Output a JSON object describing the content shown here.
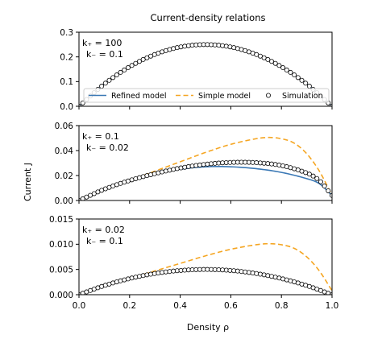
{
  "figure": {
    "title": "Current-density relations",
    "xlabel": "Density ρ",
    "ylabel": "Current J"
  },
  "legend": {
    "entries": [
      {
        "label": "Refined model",
        "style": "solid-line",
        "color": "#3a78b5"
      },
      {
        "label": "Simple model",
        "style": "dashed-line",
        "color": "#f5a623"
      },
      {
        "label": "Simulation",
        "style": "open-circle",
        "color": "#000000"
      }
    ],
    "panel": 0,
    "placement": "lower-center"
  },
  "chart_data": [
    {
      "type": "line",
      "annotation": [
        "k₊ = 100",
        "k₋ = 0.1"
      ],
      "xlim": [
        0,
        1
      ],
      "ylim": [
        0,
        0.3
      ],
      "xticks": [
        "0.0",
        "0.2",
        "0.4",
        "0.6",
        "0.8",
        "1.0"
      ],
      "yticks": [
        "0.0",
        "0.1",
        "0.2",
        "0.3"
      ],
      "series": [
        {
          "kind": "refined",
          "x": [
            0,
            0.1,
            0.2,
            0.3,
            0.4,
            0.5,
            0.6,
            0.7,
            0.8,
            0.9,
            1.0
          ],
          "y": [
            0,
            0.09,
            0.16,
            0.21,
            0.24,
            0.25,
            0.24,
            0.21,
            0.16,
            0.09,
            0
          ]
        },
        {
          "kind": "simulation",
          "x": [
            0,
            0.1,
            0.2,
            0.3,
            0.4,
            0.5,
            0.6,
            0.7,
            0.8,
            0.9,
            1.0
          ],
          "y": [
            0,
            0.09,
            0.16,
            0.21,
            0.24,
            0.25,
            0.24,
            0.21,
            0.16,
            0.09,
            0
          ]
        }
      ]
    },
    {
      "type": "line",
      "annotation": [
        "k₊ = 0.1",
        "k₋ = 0.02"
      ],
      "xlim": [
        0,
        1
      ],
      "ylim": [
        0,
        0.06
      ],
      "xticks": [
        "0.0",
        "0.2",
        "0.4",
        "0.6",
        "0.8",
        "1.0"
      ],
      "yticks": [
        "0.00",
        "0.02",
        "0.04",
        "0.06"
      ],
      "series": [
        {
          "kind": "refined",
          "x": [
            0,
            0.1,
            0.2,
            0.3,
            0.4,
            0.5,
            0.6,
            0.7,
            0.8,
            0.9,
            0.95,
            1.0
          ],
          "y": [
            0,
            0.009,
            0.016,
            0.0215,
            0.025,
            0.027,
            0.027,
            0.0255,
            0.0225,
            0.0175,
            0.0135,
            0.004
          ]
        },
        {
          "kind": "simple",
          "x": [
            0.2,
            0.3,
            0.4,
            0.5,
            0.6,
            0.7,
            0.75,
            0.8,
            0.85,
            0.9,
            0.95,
            1.0
          ],
          "y": [
            0.016,
            0.0235,
            0.031,
            0.0385,
            0.045,
            0.0495,
            0.0505,
            0.0495,
            0.046,
            0.0375,
            0.0235,
            0.004
          ]
        },
        {
          "kind": "simulation",
          "x": [
            0,
            0.1,
            0.2,
            0.3,
            0.4,
            0.5,
            0.6,
            0.7,
            0.8,
            0.9,
            0.95,
            1.0
          ],
          "y": [
            0,
            0.009,
            0.016,
            0.0215,
            0.026,
            0.029,
            0.0305,
            0.0303,
            0.028,
            0.022,
            0.016,
            0.004
          ]
        }
      ]
    },
    {
      "type": "line",
      "annotation": [
        "k₊ = 0.02",
        "k₋ = 0.1"
      ],
      "xlim": [
        0,
        1
      ],
      "ylim": [
        0,
        0.015
      ],
      "xticks": [
        "0.0",
        "0.2",
        "0.4",
        "0.6",
        "0.8",
        "1.0"
      ],
      "yticks": [
        "0.000",
        "0.005",
        "0.010",
        "0.015"
      ],
      "series": [
        {
          "kind": "refined",
          "x": [
            0,
            0.1,
            0.2,
            0.3,
            0.4,
            0.5,
            0.6,
            0.7,
            0.8,
            0.9,
            1.0
          ],
          "y": [
            0,
            0.0018,
            0.0032,
            0.0042,
            0.0048,
            0.005,
            0.0048,
            0.0042,
            0.0032,
            0.0018,
            0
          ]
        },
        {
          "kind": "simple",
          "x": [
            0.2,
            0.3,
            0.4,
            0.5,
            0.6,
            0.7,
            0.75,
            0.8,
            0.85,
            0.9,
            0.95,
            1.0
          ],
          "y": [
            0.0032,
            0.0047,
            0.0062,
            0.0077,
            0.009,
            0.0099,
            0.0101,
            0.0099,
            0.0092,
            0.0075,
            0.0047,
            0.0008
          ]
        },
        {
          "kind": "simulation",
          "x": [
            0,
            0.1,
            0.2,
            0.3,
            0.4,
            0.5,
            0.6,
            0.7,
            0.8,
            0.9,
            1.0
          ],
          "y": [
            0,
            0.0018,
            0.0032,
            0.0042,
            0.0048,
            0.005,
            0.0048,
            0.0042,
            0.0032,
            0.0018,
            0
          ]
        }
      ]
    }
  ]
}
